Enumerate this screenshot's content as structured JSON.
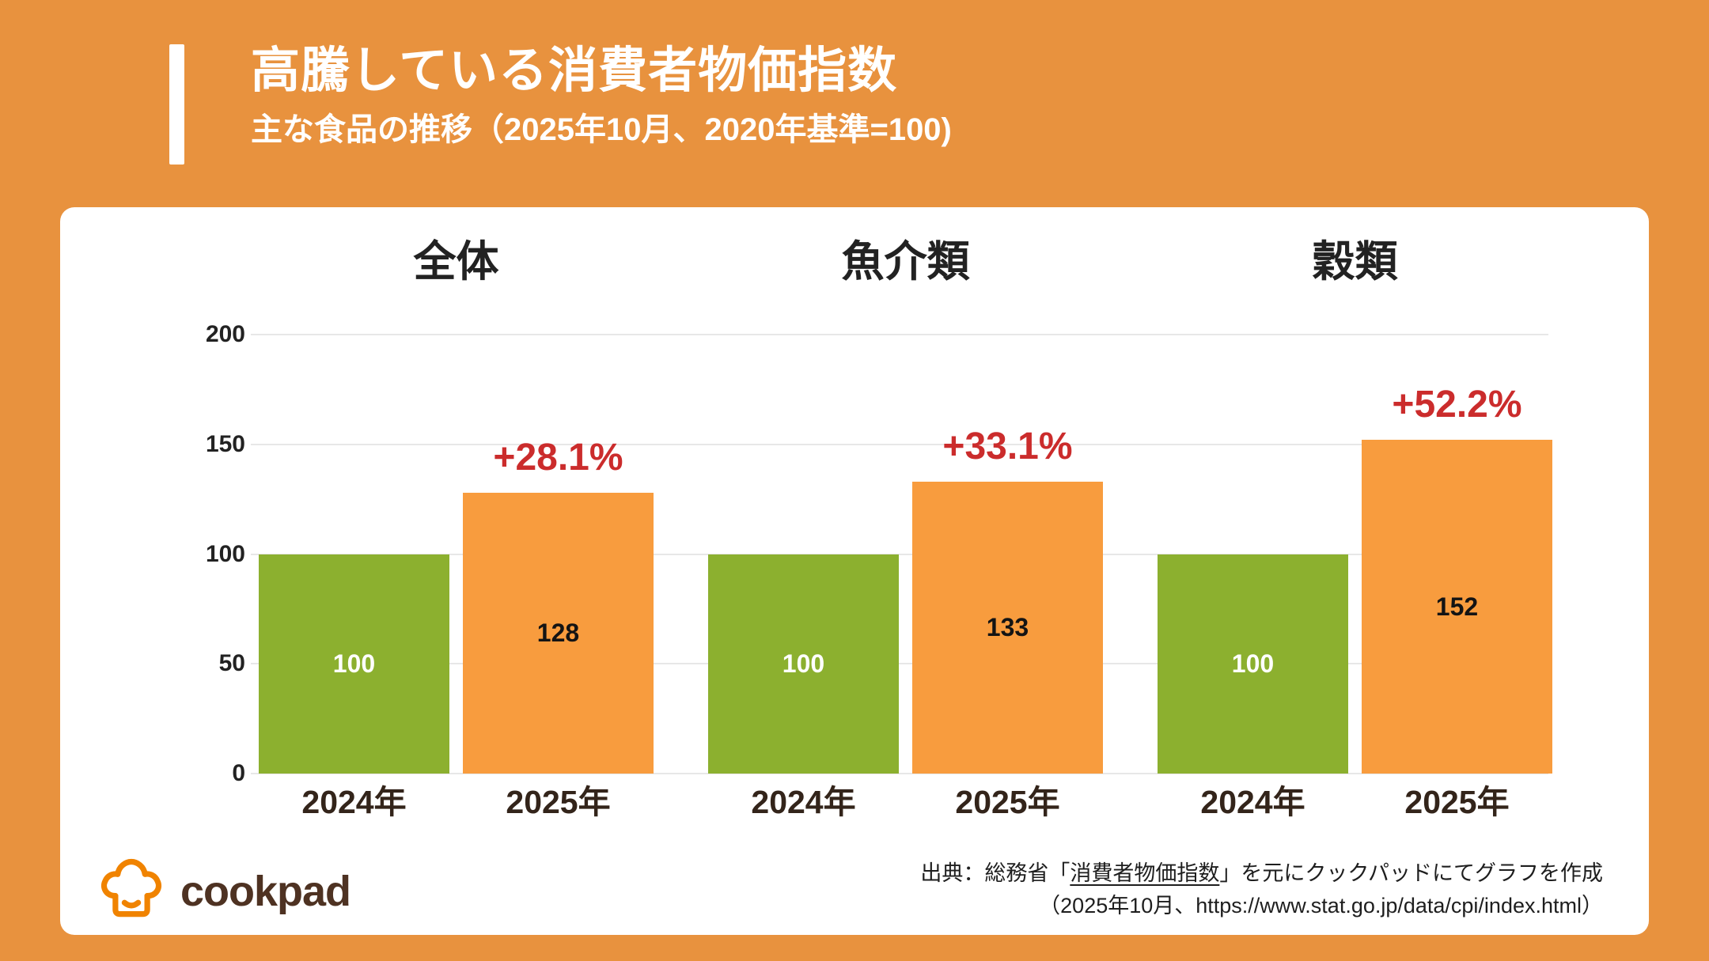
{
  "header": {
    "title": "高騰している消費者物価指数",
    "subtitle": "主な食品の推移（2025年10月、2020年基準=100)"
  },
  "chart_data": {
    "type": "bar",
    "title": "高騰している消費者物価指数",
    "subtitle": "主な食品の推移（2025年10月、2020年基準=100)",
    "xlabel": "",
    "ylabel": "",
    "ylim": [
      0,
      200
    ],
    "yticks": [
      0,
      50,
      100,
      150,
      200
    ],
    "grid": true,
    "legend": "none",
    "categories": [
      "2024年",
      "2025年"
    ],
    "groups": [
      {
        "name": "全体",
        "values": [
          100,
          128
        ],
        "change_label": "+28.1%"
      },
      {
        "name": "魚介類",
        "values": [
          100,
          133
        ],
        "change_label": "+33.1%"
      },
      {
        "name": "穀類",
        "values": [
          100,
          152
        ],
        "change_label": "+52.2%"
      }
    ],
    "colors": {
      "bar_2024": "#8CB02F",
      "bar_2025": "#F89C3E",
      "change": "#CB2C2C"
    }
  },
  "footer": {
    "logo_text": "cookpad",
    "source_prefix": "出典：総務省「",
    "source_term": "消費者物価指数",
    "source_suffix": "」を元にクックパッドにてグラフを作成",
    "source_line2": "（2025年10月、https://www.stat.go.jp/data/cpi/index.html）"
  },
  "colors": {
    "background": "#E8923E",
    "card": "#FFFFFF",
    "title_text": "#FFFFFF",
    "heading_text": "#222222",
    "axis_text": "#222222",
    "source_text": "#1E1E1E",
    "logo_orange": "#F08300",
    "logo_brown": "#4E3222"
  }
}
